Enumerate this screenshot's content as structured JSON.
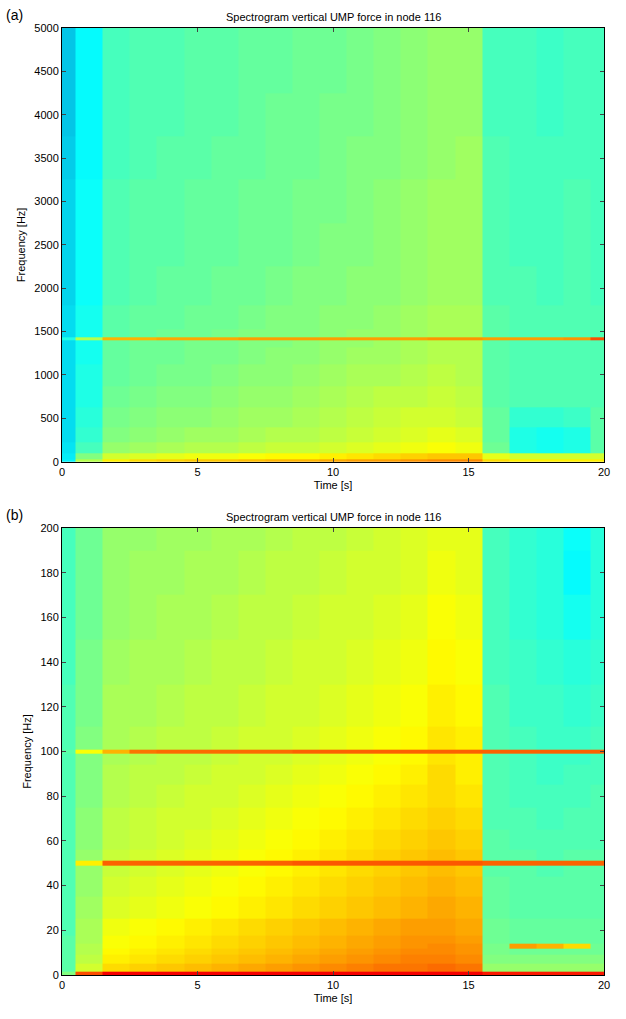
{
  "chart_data": [
    {
      "type": "heatmap",
      "panel": "(a)",
      "title": "Spectrogram vertical UMP force in node 116",
      "x_label": "Time [s]",
      "y_label": "Frequency [Hz]",
      "grid": false,
      "xlim": [
        0,
        20
      ],
      "xticks": [
        0,
        5,
        10,
        15,
        20
      ],
      "ylim": [
        0,
        5000
      ],
      "yticks": [
        0,
        500,
        1000,
        1500,
        2000,
        2500,
        3000,
        3500,
        4000,
        4500,
        5000
      ],
      "zlim": [
        0,
        100
      ],
      "x": [
        0,
        1,
        2,
        3,
        4,
        5,
        6,
        7,
        8,
        9,
        10,
        11,
        12,
        13,
        14,
        15,
        16,
        17,
        18,
        19,
        20
      ],
      "y": [
        0,
        50,
        150,
        300,
        500,
        750,
        1000,
        1250,
        1390,
        1420,
        1450,
        1600,
        2000,
        2500,
        3000,
        3500,
        4000,
        4500,
        5000
      ],
      "z": [
        [
          36,
          55,
          64,
          66,
          67,
          68,
          68,
          69,
          70,
          70,
          71,
          72,
          72,
          73,
          74,
          74,
          66,
          64,
          64,
          64,
          64
        ],
        [
          35,
          50,
          58,
          59,
          60,
          61,
          61,
          62,
          63,
          63,
          64,
          65,
          66,
          67,
          68,
          68,
          60,
          58,
          58,
          58,
          58
        ],
        [
          34,
          44,
          52,
          53,
          54,
          55,
          55,
          56,
          57,
          57,
          58,
          59,
          60,
          61,
          62,
          61,
          48,
          40,
          39,
          40,
          46
        ],
        [
          33,
          42,
          50,
          51,
          52,
          53,
          53,
          54,
          55,
          55,
          56,
          57,
          58,
          59,
          60,
          59,
          47,
          40,
          39,
          40,
          46
        ],
        [
          33,
          41,
          49,
          50,
          51,
          51,
          52,
          53,
          53,
          54,
          55,
          56,
          57,
          58,
          58,
          57,
          47,
          42,
          42,
          43,
          46
        ],
        [
          33,
          40,
          48,
          49,
          50,
          50,
          51,
          52,
          52,
          53,
          54,
          55,
          56,
          56,
          57,
          56,
          46,
          45,
          45,
          45,
          45
        ],
        [
          33,
          40,
          47,
          48,
          49,
          49,
          50,
          51,
          51,
          52,
          53,
          54,
          54,
          55,
          56,
          55,
          46,
          45,
          45,
          45,
          45
        ],
        [
          33,
          39,
          47,
          48,
          48,
          49,
          49,
          50,
          51,
          51,
          52,
          53,
          53,
          54,
          55,
          55,
          46,
          45,
          45,
          45,
          45
        ],
        [
          33,
          39,
          47,
          48,
          48,
          49,
          49,
          50,
          50,
          51,
          52,
          52,
          53,
          54,
          55,
          55,
          46,
          45,
          45,
          45,
          45
        ],
        [
          40,
          55,
          70,
          70,
          71,
          71,
          71,
          72,
          72,
          72,
          72,
          72,
          72,
          72,
          73,
          73,
          72,
          72,
          72,
          73,
          80
        ],
        [
          33,
          39,
          46,
          47,
          48,
          48,
          49,
          50,
          50,
          50,
          51,
          52,
          52,
          53,
          54,
          54,
          46,
          45,
          45,
          45,
          45
        ],
        [
          33,
          39,
          46,
          47,
          47,
          48,
          48,
          49,
          50,
          50,
          51,
          51,
          52,
          53,
          54,
          54,
          46,
          45,
          45,
          45,
          45
        ],
        [
          32,
          38,
          45,
          46,
          47,
          47,
          48,
          48,
          49,
          50,
          50,
          51,
          51,
          52,
          53,
          53,
          45,
          45,
          44,
          45,
          44
        ],
        [
          32,
          38,
          45,
          46,
          46,
          47,
          47,
          48,
          48,
          49,
          50,
          50,
          51,
          52,
          53,
          53,
          45,
          44,
          44,
          45,
          44
        ],
        [
          32,
          38,
          45,
          46,
          46,
          47,
          47,
          48,
          48,
          49,
          49,
          50,
          51,
          52,
          53,
          53,
          45,
          44,
          44,
          45,
          44
        ],
        [
          31,
          37,
          44,
          45,
          46,
          46,
          47,
          47,
          48,
          48,
          49,
          50,
          50,
          51,
          52,
          53,
          45,
          44,
          44,
          44,
          44
        ],
        [
          30,
          37,
          44,
          45,
          45,
          46,
          46,
          47,
          48,
          48,
          49,
          49,
          50,
          51,
          52,
          52,
          44,
          44,
          43,
          44,
          44
        ],
        [
          30,
          37,
          44,
          45,
          45,
          46,
          46,
          47,
          47,
          48,
          48,
          49,
          50,
          51,
          52,
          52,
          44,
          44,
          43,
          44,
          44
        ],
        [
          30,
          37,
          44,
          45,
          45,
          46,
          46,
          47,
          47,
          48,
          48,
          49,
          50,
          51,
          52,
          52,
          44,
          44,
          43,
          44,
          44
        ]
      ]
    },
    {
      "type": "heatmap",
      "panel": "(b)",
      "title": "Spectrogram vertical UMP force in node 116",
      "x_label": "Time [s]",
      "y_label": "Frequency [Hz]",
      "grid": false,
      "xlim": [
        0,
        20
      ],
      "xticks": [
        0,
        5,
        10,
        15,
        20
      ],
      "ylim": [
        0,
        200
      ],
      "yticks": [
        0,
        20,
        40,
        60,
        80,
        100,
        120,
        140,
        160,
        180,
        200
      ],
      "zlim": [
        0,
        100
      ],
      "x": [
        0,
        1,
        2,
        3,
        4,
        5,
        6,
        7,
        8,
        9,
        10,
        11,
        12,
        13,
        14,
        15,
        16,
        17,
        18,
        19,
        20
      ],
      "y": [
        0,
        3,
        7,
        11,
        13,
        15,
        20,
        30,
        40,
        48,
        50,
        52,
        60,
        70,
        80,
        90,
        98,
        100,
        102,
        120,
        140,
        160,
        180,
        200
      ],
      "z": [
        [
          50,
          80,
          88,
          88,
          88,
          88,
          88,
          88,
          88,
          88,
          88,
          88,
          88,
          88,
          88,
          88,
          85,
          85,
          85,
          85,
          85
        ],
        [
          46,
          58,
          66,
          67,
          68,
          69,
          70,
          71,
          72,
          73,
          74,
          75,
          76,
          76,
          77,
          76,
          52,
          52,
          52,
          52,
          52
        ],
        [
          46,
          56,
          64,
          65,
          66,
          67,
          68,
          69,
          70,
          71,
          72,
          73,
          74,
          75,
          75,
          74,
          50,
          50,
          50,
          50,
          50
        ],
        [
          46,
          55,
          63,
          64,
          65,
          66,
          67,
          68,
          69,
          70,
          71,
          72,
          73,
          74,
          74,
          73,
          49,
          48,
          48,
          48,
          48
        ],
        [
          46,
          55,
          62,
          63,
          64,
          65,
          66,
          67,
          68,
          69,
          70,
          71,
          72,
          73,
          74,
          73,
          49,
          72,
          70,
          66,
          48
        ],
        [
          46,
          54,
          62,
          63,
          64,
          65,
          66,
          67,
          68,
          69,
          70,
          71,
          72,
          73,
          73,
          72,
          48,
          47,
          47,
          47,
          47
        ],
        [
          45,
          54,
          61,
          62,
          63,
          64,
          65,
          66,
          67,
          68,
          69,
          70,
          71,
          72,
          72,
          71,
          48,
          47,
          47,
          47,
          47
        ],
        [
          45,
          53,
          59,
          60,
          61,
          62,
          63,
          64,
          65,
          66,
          67,
          68,
          69,
          70,
          71,
          70,
          47,
          46,
          46,
          46,
          46
        ],
        [
          45,
          52,
          58,
          59,
          60,
          61,
          62,
          63,
          64,
          65,
          66,
          67,
          68,
          69,
          70,
          69,
          47,
          46,
          46,
          46,
          46
        ],
        [
          45,
          52,
          57,
          58,
          59,
          60,
          61,
          62,
          63,
          64,
          65,
          66,
          67,
          68,
          69,
          68,
          46,
          46,
          45,
          46,
          46
        ],
        [
          45,
          64,
          78,
          78,
          78,
          78,
          78,
          78,
          78,
          79,
          79,
          79,
          79,
          79,
          79,
          79,
          78,
          78,
          78,
          78,
          78
        ],
        [
          45,
          52,
          57,
          58,
          59,
          60,
          61,
          62,
          63,
          64,
          65,
          66,
          67,
          68,
          69,
          68,
          46,
          46,
          45,
          46,
          46
        ],
        [
          45,
          51,
          56,
          57,
          58,
          59,
          60,
          61,
          62,
          63,
          64,
          65,
          66,
          67,
          68,
          67,
          46,
          45,
          45,
          45,
          45
        ],
        [
          45,
          51,
          56,
          57,
          58,
          58,
          59,
          60,
          61,
          62,
          63,
          64,
          65,
          66,
          67,
          66,
          45,
          45,
          44,
          45,
          45
        ],
        [
          45,
          50,
          55,
          56,
          57,
          58,
          58,
          59,
          60,
          61,
          62,
          63,
          64,
          65,
          66,
          65,
          45,
          44,
          44,
          44,
          45
        ],
        [
          45,
          50,
          55,
          56,
          56,
          57,
          58,
          58,
          59,
          60,
          61,
          62,
          63,
          64,
          66,
          64,
          45,
          44,
          43,
          44,
          44
        ],
        [
          45,
          50,
          54,
          55,
          56,
          56,
          57,
          58,
          58,
          59,
          60,
          61,
          62,
          63,
          65,
          64,
          45,
          44,
          43,
          43,
          44
        ],
        [
          46,
          62,
          70,
          76,
          77,
          77,
          77,
          77,
          77,
          78,
          78,
          78,
          78,
          78,
          78,
          78,
          78,
          78,
          78,
          78,
          78
        ],
        [
          45,
          50,
          54,
          55,
          56,
          56,
          57,
          58,
          58,
          59,
          60,
          61,
          62,
          63,
          65,
          64,
          45,
          44,
          43,
          43,
          44
        ],
        [
          45,
          49,
          54,
          54,
          55,
          56,
          56,
          57,
          58,
          58,
          59,
          60,
          61,
          62,
          64,
          63,
          45,
          43,
          43,
          42,
          43
        ],
        [
          44,
          49,
          53,
          54,
          54,
          55,
          56,
          56,
          57,
          58,
          58,
          59,
          60,
          61,
          63,
          62,
          44,
          43,
          42,
          41,
          42
        ],
        [
          44,
          48,
          52,
          53,
          54,
          54,
          55,
          56,
          56,
          57,
          58,
          58,
          59,
          60,
          62,
          61,
          44,
          42,
          41,
          39,
          41
        ],
        [
          44,
          48,
          52,
          53,
          53,
          54,
          54,
          55,
          56,
          56,
          57,
          58,
          58,
          59,
          61,
          60,
          44,
          42,
          41,
          37,
          41
        ],
        [
          44,
          48,
          52,
          52,
          53,
          53,
          54,
          54,
          55,
          56,
          56,
          57,
          58,
          59,
          60,
          60,
          44,
          42,
          41,
          38,
          41
        ]
      ]
    }
  ]
}
